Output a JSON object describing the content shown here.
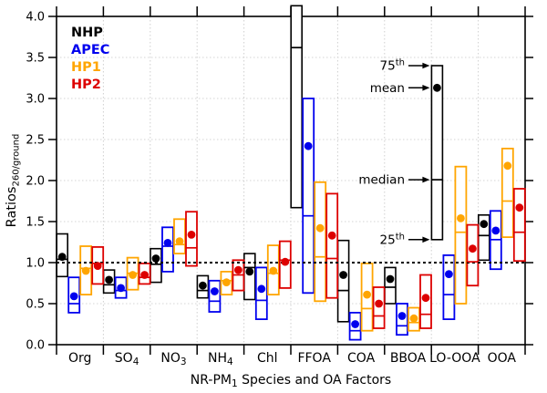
{
  "chart_data": {
    "type": "box",
    "title": "",
    "xlabel": {
      "pre": "NR-PM",
      "sub": "1",
      "post": " Species and OA Factors"
    },
    "ylabel": {
      "main": "Ratios",
      "sub": "260/ground"
    },
    "ylim": [
      0.0,
      4.0
    ],
    "ytick_step": 0.5,
    "reference_line": 1.0,
    "grid": "dotted",
    "legend_position": "top-left-inside",
    "categories": [
      {
        "main": "Org",
        "sub": ""
      },
      {
        "main": "SO",
        "sub": "4"
      },
      {
        "main": "NO",
        "sub": "3"
      },
      {
        "main": "NH",
        "sub": "4"
      },
      {
        "main": "Chl",
        "sub": ""
      },
      {
        "main": "FFOA",
        "sub": ""
      },
      {
        "main": "COA",
        "sub": ""
      },
      {
        "main": "BBOA",
        "sub": ""
      },
      {
        "main": "LO-OOA",
        "sub": ""
      },
      {
        "main": "OOA",
        "sub": ""
      }
    ],
    "series": [
      {
        "name": "NHP",
        "color": "#000000",
        "boxes": [
          {
            "q1": 0.83,
            "median": 1.04,
            "q3": 1.35,
            "mean": 1.07
          },
          {
            "q1": 0.63,
            "median": 0.73,
            "q3": 0.91,
            "mean": 0.79
          },
          {
            "q1": 0.76,
            "median": 0.98,
            "q3": 1.17,
            "mean": 1.05
          },
          {
            "q1": 0.57,
            "median": 0.66,
            "q3": 0.84,
            "mean": 0.72
          },
          {
            "q1": 0.55,
            "median": 0.94,
            "q3": 1.11,
            "mean": 0.89
          },
          {
            "q1": 1.67,
            "median": 3.62,
            "q3": 4.13,
            "mean": null
          },
          {
            "q1": 0.28,
            "median": 0.66,
            "q3": 1.27,
            "mean": 0.85
          },
          {
            "q1": 0.5,
            "median": 0.7,
            "q3": 0.94,
            "mean": 0.8
          },
          {
            "q1": 1.28,
            "median": 2.01,
            "q3": 3.4,
            "mean": 3.13
          },
          {
            "q1": 1.03,
            "median": 1.33,
            "q3": 1.58,
            "mean": 1.47
          }
        ]
      },
      {
        "name": "APEC",
        "color": "#0000EE",
        "boxes": [
          {
            "q1": 0.39,
            "median": 0.5,
            "q3": 0.82,
            "mean": 0.59
          },
          {
            "q1": 0.57,
            "median": 0.66,
            "q3": 0.82,
            "mean": 0.69
          },
          {
            "q1": 0.89,
            "median": 1.2,
            "q3": 1.43,
            "mean": 1.24
          },
          {
            "q1": 0.4,
            "median": 0.53,
            "q3": 0.78,
            "mean": 0.65
          },
          {
            "q1": 0.31,
            "median": 0.54,
            "q3": 0.94,
            "mean": 0.68
          },
          {
            "q1": 0.63,
            "median": 1.57,
            "q3": 3.0,
            "mean": 2.42
          },
          {
            "q1": 0.06,
            "median": 0.17,
            "q3": 0.39,
            "mean": 0.25
          },
          {
            "q1": 0.12,
            "median": 0.23,
            "q3": 0.5,
            "mean": 0.35
          },
          {
            "q1": 0.31,
            "median": 0.61,
            "q3": 1.09,
            "mean": 0.86
          },
          {
            "q1": 0.92,
            "median": 1.28,
            "q3": 1.63,
            "mean": 1.39
          }
        ]
      },
      {
        "name": "HP1",
        "color": "#FFA500",
        "boxes": [
          {
            "q1": 0.61,
            "median": 0.93,
            "q3": 1.2,
            "mean": 0.9
          },
          {
            "q1": 0.67,
            "median": 0.87,
            "q3": 1.06,
            "mean": 0.85
          },
          {
            "q1": 1.11,
            "median": 1.22,
            "q3": 1.53,
            "mean": 1.26
          },
          {
            "q1": 0.61,
            "median": 0.78,
            "q3": 0.89,
            "mean": 0.76
          },
          {
            "q1": 0.61,
            "median": 0.87,
            "q3": 1.21,
            "mean": 0.9
          },
          {
            "q1": 0.53,
            "median": 1.07,
            "q3": 1.98,
            "mean": 1.42
          },
          {
            "q1": 0.17,
            "median": 0.44,
            "q3": 0.99,
            "mean": 0.61
          },
          {
            "q1": 0.17,
            "median": 0.27,
            "q3": 0.45,
            "mean": 0.32
          },
          {
            "q1": 0.5,
            "median": 1.37,
            "q3": 2.17,
            "mean": 1.54
          },
          {
            "q1": 1.31,
            "median": 1.75,
            "q3": 2.39,
            "mean": 2.18
          }
        ]
      },
      {
        "name": "HP2",
        "color": "#DD0000",
        "boxes": [
          {
            "q1": 0.74,
            "median": 0.99,
            "q3": 1.19,
            "mean": 0.96
          },
          {
            "q1": 0.74,
            "median": 0.82,
            "q3": 0.99,
            "mean": 0.85
          },
          {
            "q1": 0.96,
            "median": 1.18,
            "q3": 1.62,
            "mean": 1.34
          },
          {
            "q1": 0.66,
            "median": 0.85,
            "q3": 1.03,
            "mean": 0.91
          },
          {
            "q1": 0.69,
            "median": 1.03,
            "q3": 1.26,
            "mean": 1.01
          },
          {
            "q1": 0.57,
            "median": 1.05,
            "q3": 1.84,
            "mean": 1.33
          },
          {
            "q1": 0.2,
            "median": 0.35,
            "q3": 0.7,
            "mean": 0.5
          },
          {
            "q1": 0.2,
            "median": 0.37,
            "q3": 0.85,
            "mean": 0.57
          },
          {
            "q1": 0.72,
            "median": 1.01,
            "q3": 1.46,
            "mean": 1.17
          },
          {
            "q1": 1.02,
            "median": 1.37,
            "q3": 1.9,
            "mean": 1.67
          }
        ]
      }
    ],
    "annotation": {
      "series": "NHP",
      "category": "LO-OOA",
      "labels": [
        {
          "text": "75",
          "sup": "th",
          "target": "q3"
        },
        {
          "text": "mean",
          "sup": "",
          "target": "mean"
        },
        {
          "text": "median",
          "sup": "",
          "target": "median"
        },
        {
          "text": "25",
          "sup": "th",
          "target": "q1"
        }
      ]
    }
  }
}
